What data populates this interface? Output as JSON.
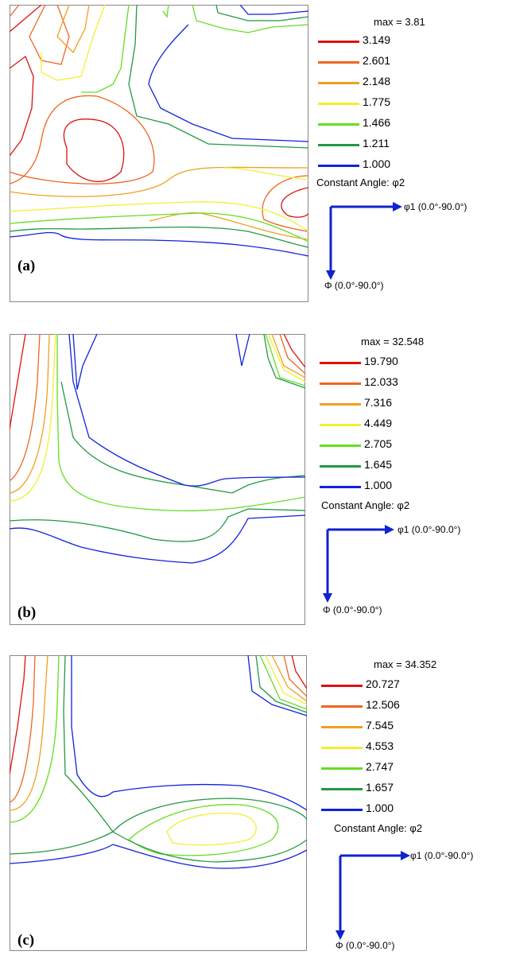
{
  "panels": [
    {
      "label": "(a)",
      "max_text": "max = 3.81",
      "constant_angle_text": "Constant Angle: φ2",
      "phi1_text": "φ1  (0.0°-90.0°)",
      "Phi_text": "Φ  (0.0°-90.0°)",
      "levels": [
        {
          "value": "3.149",
          "color": "#dd1111"
        },
        {
          "value": "2.601",
          "color": "#ee6622"
        },
        {
          "value": "2.148",
          "color": "#f0a020"
        },
        {
          "value": "1.775",
          "color": "#f0f030"
        },
        {
          "value": "1.466",
          "color": "#66dd22"
        },
        {
          "value": "1.211",
          "color": "#229944"
        },
        {
          "value": "1.000",
          "color": "#1122dd"
        }
      ]
    },
    {
      "label": "(b)",
      "max_text": "max = 32.548",
      "constant_angle_text": "Constant Angle: φ2",
      "phi1_text": "φ1  (0.0°-90.0°)",
      "Phi_text": "Φ  (0.0°-90.0°)",
      "levels": [
        {
          "value": "19.790",
          "color": "#dd1111"
        },
        {
          "value": "12.033",
          "color": "#ee6622"
        },
        {
          "value": "7.316",
          "color": "#f0a020"
        },
        {
          "value": "4.449",
          "color": "#f0f030"
        },
        {
          "value": "2.705",
          "color": "#66dd22"
        },
        {
          "value": "1.645",
          "color": "#229944"
        },
        {
          "value": "1.000",
          "color": "#1122dd"
        }
      ]
    },
    {
      "label": "(c)",
      "max_text": "max = 34.352",
      "constant_angle_text": "Constant Angle: φ2",
      "phi1_text": "φ1  (0.0°-90.0°)",
      "Phi_text": "Φ  (0.0°-90.0°)",
      "levels": [
        {
          "value": "20.727",
          "color": "#dd1111"
        },
        {
          "value": "12.506",
          "color": "#ee6622"
        },
        {
          "value": "7.545",
          "color": "#f0a020"
        },
        {
          "value": "4.553",
          "color": "#f0f030"
        },
        {
          "value": "2.747",
          "color": "#66dd22"
        },
        {
          "value": "1.657",
          "color": "#229944"
        },
        {
          "value": "1.000",
          "color": "#1122dd"
        }
      ]
    }
  ],
  "chart_data": [
    {
      "type": "contour",
      "max": 3.81,
      "levels": [
        3.149,
        2.601,
        2.148,
        1.775,
        1.466,
        1.211,
        1.0
      ],
      "x_axis": "φ1",
      "x_range": [
        0,
        90
      ],
      "y_axis": "Φ",
      "y_range": [
        0,
        90
      ],
      "legend_position": "right"
    },
    {
      "type": "contour",
      "max": 32.548,
      "levels": [
        19.79,
        12.033,
        7.316,
        4.449,
        2.705,
        1.645,
        1.0
      ],
      "x_axis": "φ1",
      "x_range": [
        0,
        90
      ],
      "y_axis": "Φ",
      "y_range": [
        0,
        90
      ],
      "legend_position": "right"
    },
    {
      "type": "contour",
      "max": 34.352,
      "levels": [
        20.727,
        12.506,
        7.545,
        4.553,
        2.747,
        1.657,
        1.0
      ],
      "x_axis": "φ1",
      "x_range": [
        0,
        90
      ],
      "y_axis": "Φ",
      "y_range": [
        0,
        90
      ],
      "legend_position": "right"
    }
  ],
  "colors": {
    "arrow": "#1122cc",
    "frame": "#888888"
  }
}
